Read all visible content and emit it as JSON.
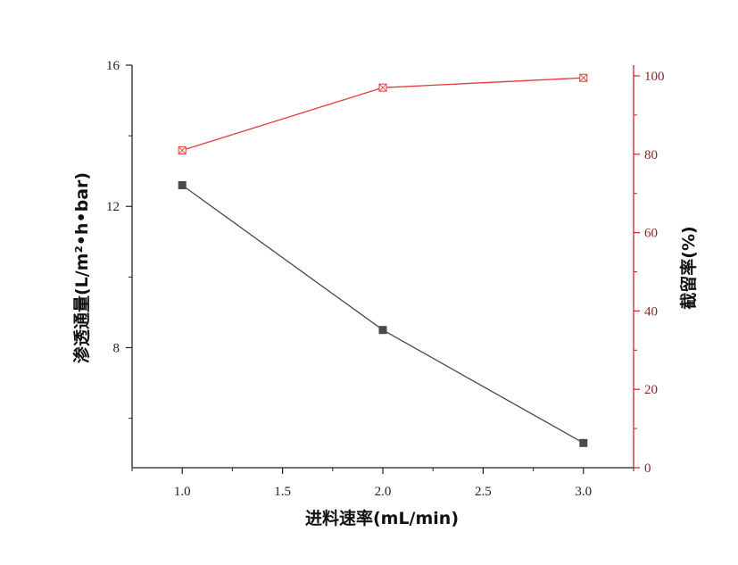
{
  "chart_data": {
    "type": "line",
    "x": [
      1.0,
      2.0,
      3.0
    ],
    "xlabel": "进料速率(mL/min)",
    "xlim": [
      0.75,
      3.25
    ],
    "xticks": [
      "1.0",
      "1.5",
      "2.0",
      "2.5",
      "3.0"
    ],
    "ylabel": "渗透通量(L/m²•h•bar)",
    "ylim": [
      4.6,
      16
    ],
    "yticks": [
      "8",
      "12",
      "16"
    ],
    "y2label": "截留率(%)",
    "y2lim": [
      0,
      100
    ],
    "y2ticks": [
      "0",
      "20",
      "40",
      "60",
      "80",
      "100"
    ],
    "grid": false,
    "series": [
      {
        "axis": "left",
        "marker": "filled-square",
        "color": "#4a4a4a",
        "values": [
          12.6,
          8.5,
          5.3
        ]
      },
      {
        "axis": "right",
        "marker": "crossed-square",
        "color": "#e03c3c",
        "values": [
          81,
          97,
          99.5
        ]
      }
    ],
    "colors": {
      "left_axis": "#222222",
      "right_axis": "#c0282d",
      "right_ticks": "#8b2525"
    }
  }
}
